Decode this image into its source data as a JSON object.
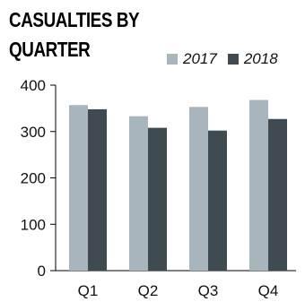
{
  "chart_data": {
    "type": "bar",
    "title": "CASUALTIES BY QUARTER",
    "categories": [
      "Q1",
      "Q2",
      "Q3",
      "Q4"
    ],
    "series": [
      {
        "name": "2017",
        "values": [
          357,
          333,
          353,
          368
        ],
        "color": "#a9b5bc"
      },
      {
        "name": "2018",
        "values": [
          348,
          308,
          302,
          327
        ],
        "color": "#3f4a51"
      }
    ],
    "yticks": [
      "0",
      "100",
      "200",
      "300",
      "400"
    ],
    "ylim": [
      0,
      400
    ],
    "xlabel": "",
    "ylabel": "",
    "grid": false,
    "legend_position": "top-right"
  }
}
